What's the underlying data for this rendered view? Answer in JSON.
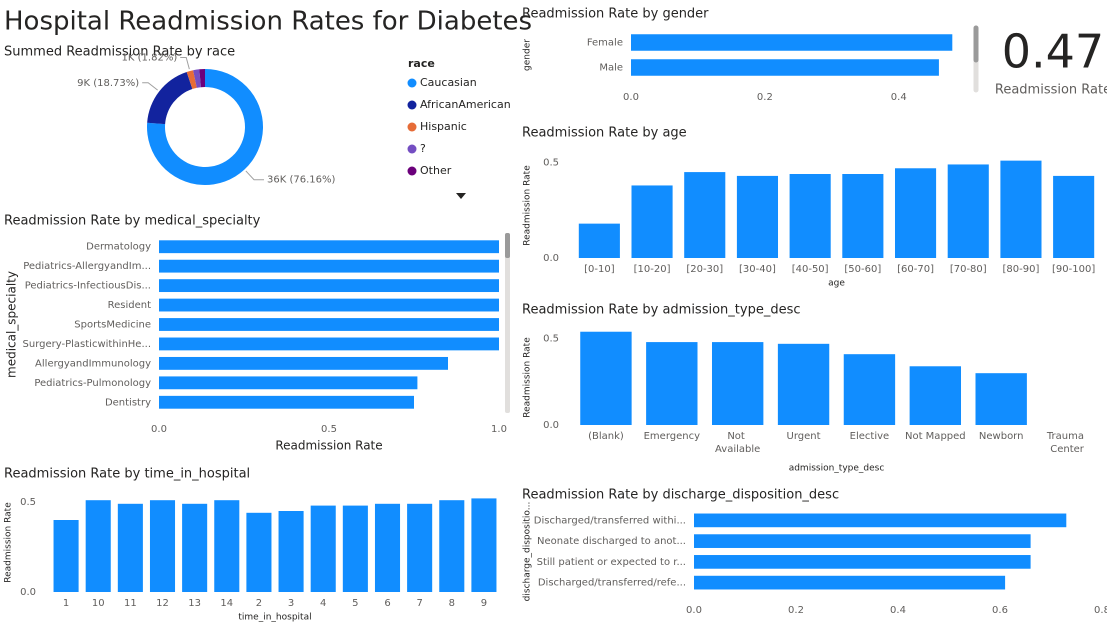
{
  "title": "Hospital Readmission Rates for Diabetes",
  "card": {
    "value": 0.47,
    "label": "Readmission Rate"
  },
  "chart_data": [
    {
      "type": "donut",
      "title": "Summed Readmission Rate by race",
      "legend_title": "race",
      "categories": [
        "Caucasian",
        "AfricanAmerican",
        "Hispanic",
        "?",
        "Other"
      ],
      "values": [
        76.16,
        18.73,
        1.82,
        1.7,
        1.59
      ],
      "value_labels": [
        "36K (76.16%)",
        "9K (18.73%)",
        "1K (1.82%)",
        null,
        null
      ],
      "colors": [
        "#118DFF",
        "#12239E",
        "#E66C37",
        "#744EC2",
        "#6B007B"
      ]
    },
    {
      "type": "bar",
      "orientation": "horizontal",
      "title": "Readmission Rate by gender",
      "ylabel": "gender",
      "categories": [
        "Female",
        "Male"
      ],
      "values": [
        0.48,
        0.46
      ],
      "xlim": [
        0,
        0.49
      ],
      "xticks": [
        {
          "value": 0,
          "label": "0.0"
        },
        0.2,
        0.4
      ],
      "color": "#118DFF"
    },
    {
      "type": "bar",
      "orientation": "vertical",
      "title": "Readmission Rate by age",
      "xlabel": "age",
      "ylabel": "Readmission Rate",
      "categories": [
        "[0-10]",
        "[10-20]",
        "[20-30]",
        "[30-40]",
        "[40-50]",
        "[50-60]",
        "[60-70]",
        "[70-80]",
        "[80-90]",
        "[90-100]"
      ],
      "values": [
        0.18,
        0.38,
        0.45,
        0.43,
        0.44,
        0.44,
        0.47,
        0.49,
        0.51,
        0.43
      ],
      "ylim": [
        0,
        0.55
      ],
      "yticks": [
        {
          "value": 0,
          "label": "0.0"
        },
        0.5
      ],
      "color": "#118DFF"
    },
    {
      "type": "bar",
      "orientation": "vertical",
      "title": "Readmission Rate by admission_type_desc",
      "xlabel": "admission_type_desc",
      "ylabel": "Readmission Rate",
      "categories": [
        "(Blank)",
        "Emergency",
        "Not Available",
        "Urgent",
        "Elective",
        "Not Mapped",
        "Newborn",
        "Trauma Center"
      ],
      "values": [
        0.54,
        0.48,
        0.48,
        0.47,
        0.41,
        0.34,
        0.3,
        null
      ],
      "ylim": [
        0,
        0.55
      ],
      "yticks": [
        {
          "value": 0,
          "label": "0.0"
        },
        0.5
      ],
      "color": "#118DFF"
    },
    {
      "type": "bar",
      "orientation": "horizontal",
      "title": "Readmission Rate by medical_specialty",
      "xlabel": "Readmission Rate",
      "ylabel": "medical_specialty",
      "categories": [
        "Dermatology",
        "Pediatrics-AllergyandIm...",
        "Pediatrics-InfectiousDis...",
        "Resident",
        "SportsMedicine",
        "Surgery-PlasticwithinHe...",
        "AllergyandImmunology",
        "Pediatrics-Pulmonology",
        "Dentistry"
      ],
      "values": [
        1,
        1,
        1,
        1,
        1,
        1,
        0.85,
        0.76,
        0.75
      ],
      "xlim": [
        0,
        1
      ],
      "xticks": [
        {
          "value": 0,
          "label": "0.0"
        },
        0.5,
        {
          "value": 1,
          "label": "1.0"
        }
      ],
      "color": "#118DFF"
    },
    {
      "type": "bar",
      "orientation": "vertical",
      "title": "Readmission Rate by time_in_hospital",
      "xlabel": "time_in_hospital",
      "ylabel": "Readmission Rate",
      "categories": [
        "1",
        "10",
        "11",
        "12",
        "13",
        "14",
        "2",
        "3",
        "4",
        "5",
        "6",
        "7",
        "8",
        "9"
      ],
      "values": [
        0.4,
        0.51,
        0.49,
        0.51,
        0.49,
        0.51,
        0.44,
        0.45,
        0.48,
        0.48,
        0.49,
        0.49,
        0.51,
        0.52
      ],
      "ylim": [
        0,
        0.55
      ],
      "yticks": [
        {
          "value": 0,
          "label": "0.0"
        },
        0.5
      ],
      "color": "#118DFF"
    },
    {
      "type": "bar",
      "orientation": "horizontal",
      "title": "Readmission Rate by discharge_disposition_desc",
      "ylabel": "discharge_dispositio...",
      "categories": [
        "Discharged/transferred withi...",
        "Neonate discharged to anot...",
        "Still patient or expected to r...",
        "Discharged/transferred/refe..."
      ],
      "values": [
        0.73,
        0.66,
        0.66,
        0.61
      ],
      "xlim": [
        0,
        0.8
      ],
      "xticks": [
        {
          "value": 0,
          "label": "0.0"
        },
        0.2,
        0.4,
        0.6,
        0.8
      ],
      "color": "#118DFF"
    }
  ]
}
